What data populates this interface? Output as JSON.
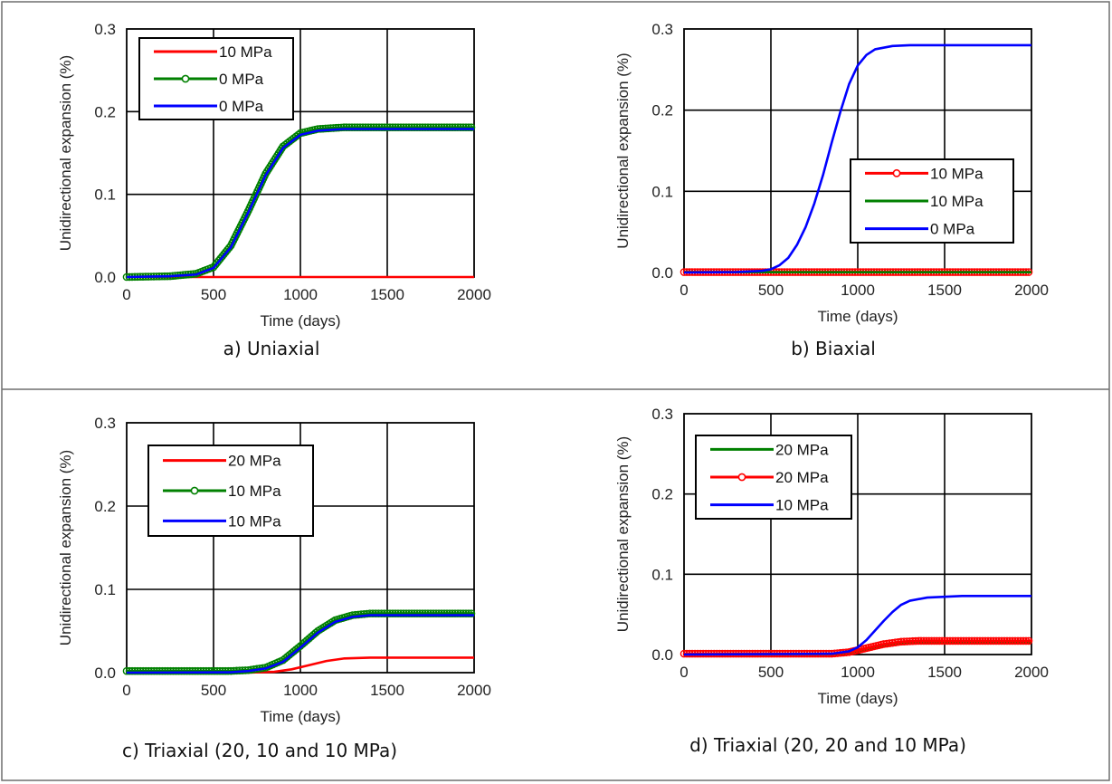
{
  "chart_data": [
    {
      "type": "line",
      "caption": "a) Uniaxial",
      "xlabel": "Time (days)",
      "ylabel": "Unidirectional expansion (%)",
      "xlim": [
        0,
        2000
      ],
      "ylim": [
        0,
        0.3
      ],
      "xticks": [
        "0",
        "500",
        "1000",
        "1500",
        "2000"
      ],
      "yticks": [
        "0.0",
        "0.1",
        "0.2",
        "0.3"
      ],
      "legend_position": "top-left",
      "series": [
        {
          "name": "10 MPa",
          "color": "#ff0000",
          "marker": false,
          "x": [
            0,
            2000
          ],
          "y": [
            0,
            0
          ]
        },
        {
          "name": "0 MPa",
          "color": "#008000",
          "marker": true,
          "x": [
            0,
            250,
            400,
            500,
            600,
            700,
            800,
            900,
            1000,
            1100,
            1250,
            1500,
            2000
          ],
          "y": [
            0,
            0.001,
            0.004,
            0.012,
            0.038,
            0.08,
            0.125,
            0.158,
            0.174,
            0.179,
            0.181,
            0.181,
            0.181
          ]
        },
        {
          "name": "0 MPa",
          "color": "#0000ff",
          "marker": false,
          "x": [
            0,
            250,
            400,
            500,
            600,
            700,
            800,
            900,
            1000,
            1100,
            1250,
            1500,
            2000
          ],
          "y": [
            0,
            0.001,
            0.003,
            0.011,
            0.036,
            0.078,
            0.123,
            0.156,
            0.172,
            0.177,
            0.179,
            0.179,
            0.179
          ]
        }
      ]
    },
    {
      "type": "line",
      "caption": "b) Biaxial",
      "xlabel": "Time (days)",
      "ylabel": "Unidirectional expansion (%)",
      "xlim": [
        0,
        2000
      ],
      "ylim": [
        0,
        0.3
      ],
      "xticks": [
        "0",
        "500",
        "1000",
        "1500",
        "2000"
      ],
      "yticks": [
        "0.0",
        "0.1",
        "0.2",
        "0.3"
      ],
      "legend_position": "center-right",
      "series": [
        {
          "name": "10 MPa",
          "color": "#ff0000",
          "marker": true,
          "x": [
            0,
            2000
          ],
          "y": [
            0.0005,
            0.0005
          ]
        },
        {
          "name": "10 MPa",
          "color": "#008000",
          "marker": false,
          "x": [
            0,
            2000
          ],
          "y": [
            0.0003,
            0.0003
          ]
        },
        {
          "name": "0 MPa",
          "color": "#0000ff",
          "marker": false,
          "x": [
            0,
            300,
            450,
            500,
            550,
            600,
            650,
            700,
            750,
            800,
            850,
            900,
            950,
            1000,
            1050,
            1100,
            1200,
            1300,
            1500,
            2000
          ],
          "y": [
            0,
            0.0005,
            0.002,
            0.004,
            0.009,
            0.018,
            0.034,
            0.056,
            0.085,
            0.12,
            0.16,
            0.198,
            0.232,
            0.255,
            0.268,
            0.275,
            0.279,
            0.28,
            0.28,
            0.28
          ]
        }
      ]
    },
    {
      "type": "line",
      "caption": "c) Triaxial (20, 10 and 10 MPa)",
      "xlabel": "Time (days)",
      "ylabel": "Unidirectional expansion (%)",
      "xlim": [
        0,
        2000
      ],
      "ylim": [
        0,
        0.3
      ],
      "xticks": [
        "0",
        "500",
        "1000",
        "1500",
        "2000"
      ],
      "yticks": [
        "0.0",
        "0.1",
        "0.2",
        "0.3"
      ],
      "legend_position": "top-left",
      "series": [
        {
          "name": "20 MPa",
          "color": "#ff0000",
          "marker": false,
          "x": [
            0,
            700,
            850,
            950,
            1050,
            1150,
            1250,
            1400,
            1600,
            2000
          ],
          "y": [
            0,
            0,
            0.001,
            0.004,
            0.009,
            0.014,
            0.017,
            0.018,
            0.018,
            0.018
          ]
        },
        {
          "name": "10 MPa",
          "color": "#008000",
          "marker": true,
          "x": [
            0,
            600,
            700,
            800,
            900,
            1000,
            1100,
            1200,
            1300,
            1400,
            1500,
            2000
          ],
          "y": [
            0.002,
            0.002,
            0.003,
            0.006,
            0.015,
            0.032,
            0.05,
            0.063,
            0.069,
            0.071,
            0.071,
            0.071
          ]
        },
        {
          "name": "10 MPa",
          "color": "#0000ff",
          "marker": false,
          "x": [
            0,
            600,
            700,
            800,
            900,
            1000,
            1100,
            1200,
            1300,
            1400,
            1500,
            2000
          ],
          "y": [
            0,
            0.0005,
            0.002,
            0.005,
            0.013,
            0.03,
            0.048,
            0.061,
            0.067,
            0.069,
            0.069,
            0.069
          ]
        }
      ]
    },
    {
      "type": "line",
      "caption": "d) Triaxial (20, 20 and 10 MPa)",
      "xlabel": "Time (days)",
      "ylabel": "Unidirectional expansion (%)",
      "xlim": [
        0,
        2000
      ],
      "ylim": [
        0,
        0.3
      ],
      "xticks": [
        "0",
        "500",
        "1000",
        "1500",
        "2000"
      ],
      "yticks": [
        "0.0",
        "0.1",
        "0.2",
        "0.3"
      ],
      "legend_position": "top-left",
      "series": [
        {
          "name": "20 MPa",
          "color": "#008000",
          "marker": false,
          "x": [
            0,
            850,
            950,
            1050,
            1150,
            1250,
            1350,
            1500,
            2000
          ],
          "y": [
            0,
            0,
            0.002,
            0.006,
            0.011,
            0.014,
            0.015,
            0.015,
            0.015
          ]
        },
        {
          "name": "20 MPa",
          "color": "#ff0000",
          "marker": true,
          "x": [
            0,
            850,
            950,
            1050,
            1150,
            1250,
            1350,
            1500,
            2000
          ],
          "y": [
            0.001,
            0.001,
            0.003,
            0.008,
            0.013,
            0.016,
            0.017,
            0.017,
            0.017
          ]
        },
        {
          "name": "10 MPa",
          "color": "#0000ff",
          "marker": false,
          "x": [
            0,
            850,
            950,
            1000,
            1050,
            1100,
            1150,
            1200,
            1250,
            1300,
            1400,
            1500,
            1600,
            2000
          ],
          "y": [
            0,
            0.001,
            0.004,
            0.009,
            0.018,
            0.03,
            0.042,
            0.053,
            0.062,
            0.067,
            0.071,
            0.072,
            0.073,
            0.073
          ]
        }
      ]
    }
  ]
}
